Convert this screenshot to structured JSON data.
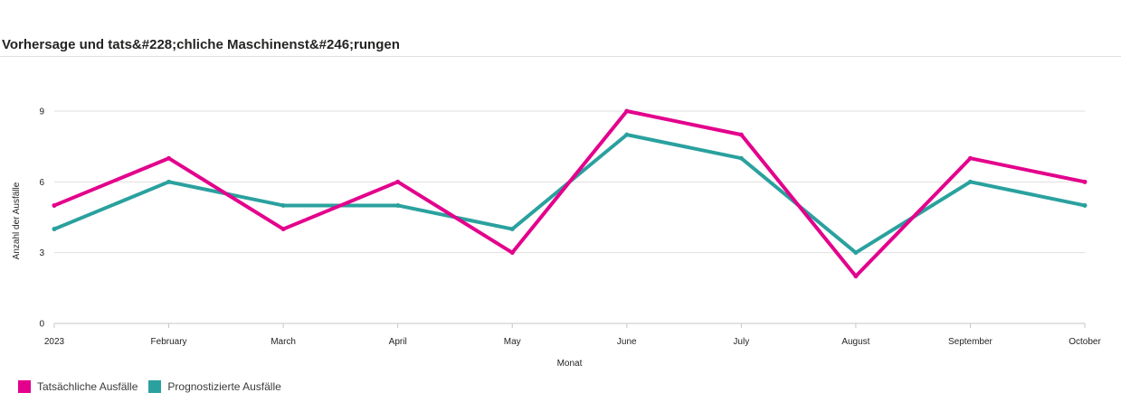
{
  "chart_data": {
    "type": "line",
    "title": "Vorhersage und tats&#228;chliche Maschinenst&#246;rungen",
    "xlabel": "Monat",
    "ylabel": "Anzahl der Ausfälle",
    "categories": [
      "2023",
      "February",
      "March",
      "April",
      "May",
      "June",
      "July",
      "August",
      "September",
      "October"
    ],
    "ylim": [
      0,
      9
    ],
    "yticks": [
      "0",
      "3",
      "6",
      "9"
    ],
    "grid": true,
    "legend_position": "bottom-left",
    "series": [
      {
        "name": "Tatsächliche Ausfälle",
        "color": "#E3008C",
        "values": [
          5,
          7,
          4,
          6,
          3,
          9,
          8,
          2,
          7,
          6
        ]
      },
      {
        "name": "Prognostizierte Ausfälle",
        "color": "#2AA19E",
        "values": [
          4,
          6,
          5,
          5,
          4,
          8,
          7,
          3,
          6,
          5
        ]
      }
    ]
  }
}
